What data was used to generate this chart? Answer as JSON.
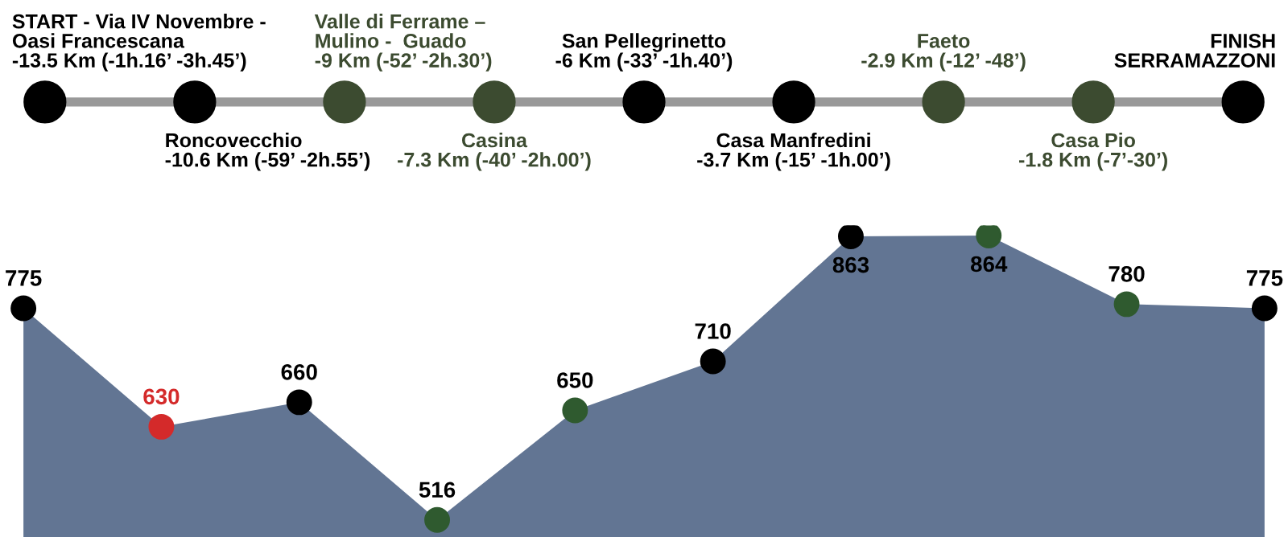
{
  "chart_data": [
    {
      "type": "other",
      "annotations": [
        "START - Via IV Novembre -\nOasi Francescana\n-13.5 Km (-1h.16’ -3h.45’)",
        "Roncovecchio\n-10.6 Km (-59’ -2h.55’)",
        "Valle di Ferrame –\nMulino -  Guado\n-9 Km (-52’ -2h.30’)",
        "Casina\n-7.3 Km (-40’ -2h.00’)",
        "San Pellegrinetto\n-6 Km (-33’ -1h.40’)",
        "Casa Manfredini\n-3.7 Km (-15’ -1h.00’)",
        "Faeto\n-2.9 Km (-12’ -48’)",
        "Casa Pio\n-1.8 Km (-7’-30’)",
        "FINISH\nSERRAMAZZONI"
      ],
      "colors": [
        "#000000",
        "#000000",
        "#3c4b30",
        "#3c4b30",
        "#000000",
        "#000000",
        "#3c4b30",
        "#3c4b30",
        "#000000"
      ]
    },
    {
      "type": "area",
      "categories": [
        null,
        null,
        null,
        null,
        null,
        null,
        null,
        null,
        null,
        null
      ],
      "values": [
        775,
        630,
        660,
        516,
        650,
        710,
        863,
        864,
        780,
        775
      ],
      "color": "#627593",
      "colors": [
        "#000000",
        "#d42a2a",
        "#000000",
        "#2f5a2f",
        "#2f5a2f",
        "#000000",
        "#000000",
        "#2f5a2f",
        "#2f5a2f",
        "#000000"
      ],
      "marker": "circle",
      "data_labels": true
    }
  ]
}
